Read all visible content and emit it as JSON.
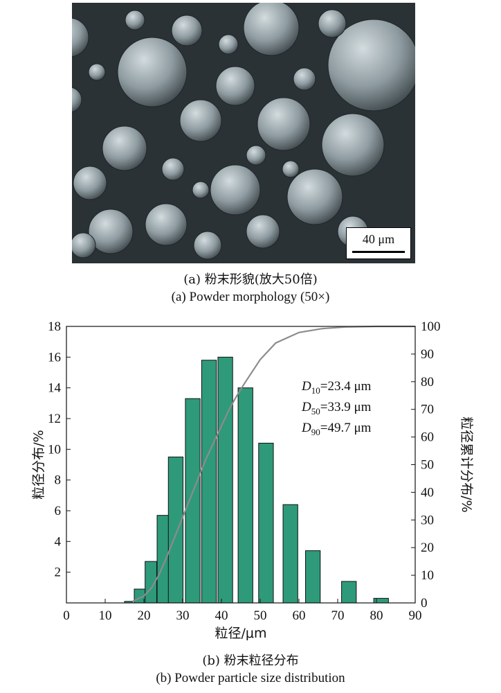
{
  "panel_a": {
    "scale_bar_label": "40 μm",
    "caption_cn": "(a) 粉末形貌(放大50倍)",
    "caption_en": "(a) Powder morphology (50×)"
  },
  "panel_b": {
    "caption_cn": "(b) 粉末粒径分布",
    "caption_en": "(b) Powder particle size distribution"
  },
  "chart_data": {
    "type": "bar",
    "title": "",
    "xlabel": "粒径/μm",
    "ylabel": "粒径分布/%",
    "y2label": "粒径累计分布/%",
    "xlim": [
      0,
      90
    ],
    "ylim": [
      0,
      18
    ],
    "y2lim": [
      0,
      100
    ],
    "xticks": [
      0,
      10,
      20,
      30,
      40,
      50,
      60,
      70,
      80,
      90
    ],
    "yticks": [
      2,
      4,
      6,
      8,
      10,
      12,
      14,
      16,
      18
    ],
    "y2ticks": [
      0,
      10,
      20,
      30,
      40,
      50,
      60,
      70,
      80,
      90,
      100
    ],
    "bar_color": "#2e9a7a",
    "line_color": "#8c8c8c",
    "bars": [
      {
        "x": 16,
        "w": 2,
        "value": 0.1
      },
      {
        "x": 19,
        "w": 3,
        "value": 0.9
      },
      {
        "x": 21.8,
        "w": 3,
        "value": 2.7
      },
      {
        "x": 24.9,
        "w": 3,
        "value": 5.7
      },
      {
        "x": 28.2,
        "w": 3.8,
        "value": 9.5
      },
      {
        "x": 32.6,
        "w": 3.8,
        "value": 13.3
      },
      {
        "x": 36.8,
        "w": 3.8,
        "value": 15.8
      },
      {
        "x": 41,
        "w": 3.8,
        "value": 16.0
      },
      {
        "x": 46.2,
        "w": 3.8,
        "value": 14.0
      },
      {
        "x": 51.5,
        "w": 3.8,
        "value": 10.4
      },
      {
        "x": 57.8,
        "w": 3.8,
        "value": 6.4
      },
      {
        "x": 63.6,
        "w": 3.8,
        "value": 3.4
      },
      {
        "x": 72.9,
        "w": 3.8,
        "value": 1.4
      },
      {
        "x": 81.2,
        "w": 3.8,
        "value": 0.3
      }
    ],
    "cumulative": {
      "x": [
        17,
        20,
        22,
        24,
        26,
        28,
        30,
        32,
        34,
        36,
        38,
        40,
        42,
        44,
        46,
        50,
        54,
        60,
        66,
        72,
        80,
        90
      ],
      "y": [
        0.5,
        2.5,
        5.5,
        10.5,
        17,
        24,
        31,
        38,
        45,
        52,
        58,
        64,
        70,
        75,
        79.5,
        88,
        94,
        97.8,
        99.2,
        99.8,
        100,
        100
      ]
    },
    "annotations": [
      {
        "d": "D",
        "sub": "10",
        "text": "=23.4 μm"
      },
      {
        "d": "D",
        "sub": "50",
        "text": "=33.9 μm"
      },
      {
        "d": "D",
        "sub": "90",
        "text": "=49.7 μm"
      }
    ]
  }
}
